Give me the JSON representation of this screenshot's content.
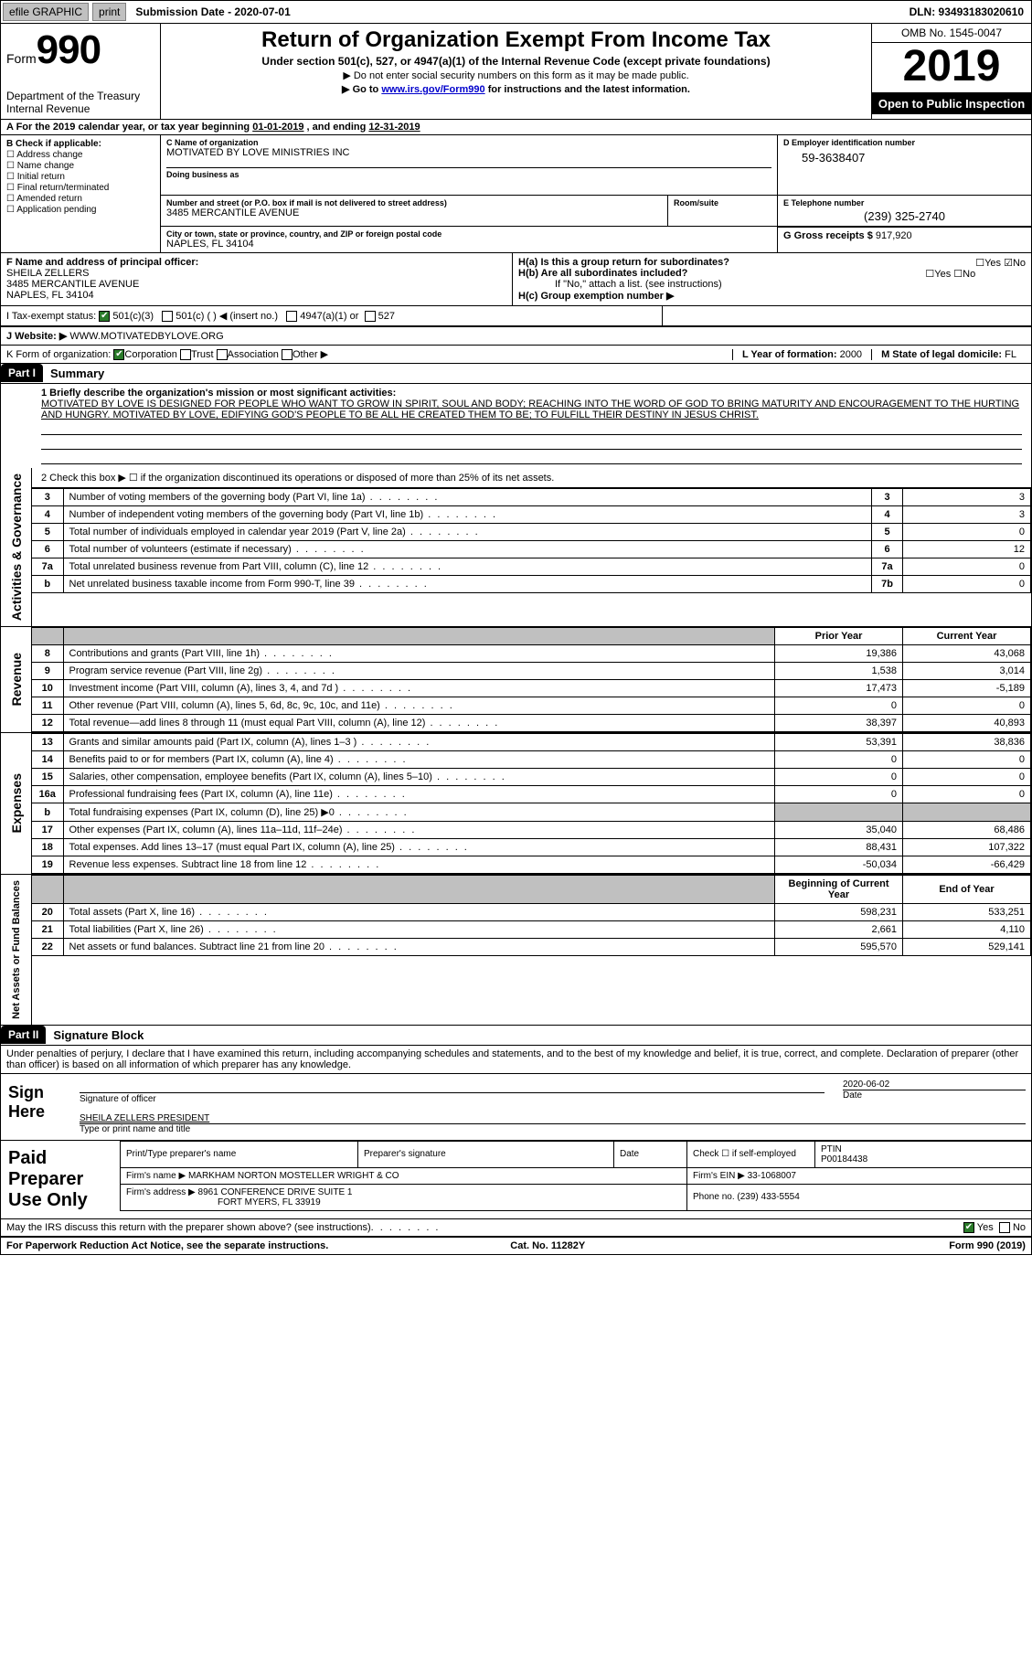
{
  "topbar": {
    "efile": "efile GRAPHIC",
    "print": "print",
    "submission": "Submission Date - 2020-07-01",
    "dln": "DLN: 93493183020610"
  },
  "header": {
    "form_prefix": "Form",
    "form_number": "990",
    "dept1": "Department of the Treasury",
    "dept2": "Internal Revenue",
    "title": "Return of Organization Exempt From Income Tax",
    "subtitle": "Under section 501(c), 527, or 4947(a)(1) of the Internal Revenue Code (except private foundations)",
    "note1": "▶ Do not enter social security numbers on this form as it may be made public.",
    "note2a": "▶ Go to ",
    "note2_link": "www.irs.gov/Form990",
    "note2b": " for instructions and the latest information.",
    "omb": "OMB No. 1545-0047",
    "year": "2019",
    "inspection": "Open to Public Inspection"
  },
  "period": {
    "prefix": "A   For the 2019 calendar year, or tax year beginning ",
    "begin": "01-01-2019",
    "mid": " , and ending ",
    "end": "12-31-2019"
  },
  "sectionB": {
    "header": "B Check if applicable:",
    "opts": [
      "Address change",
      "Name change",
      "Initial return",
      "Final return/terminated",
      "Amended return",
      "Application pending"
    ]
  },
  "sectionC": {
    "label_name": "C Name of organization",
    "name": "MOTIVATED BY LOVE MINISTRIES INC",
    "dba_label": "Doing business as",
    "street_label": "Number and street (or P.O. box if mail is not delivered to street address)",
    "room_label": "Room/suite",
    "street": "3485 MERCANTILE AVENUE",
    "city_label": "City or town, state or province, country, and ZIP or foreign postal code",
    "city": "NAPLES, FL  34104"
  },
  "sectionD": {
    "label": "D Employer identification number",
    "value": "59-3638407"
  },
  "sectionE": {
    "label": "E Telephone number",
    "value": "(239) 325-2740"
  },
  "sectionG": {
    "label": "G Gross receipts $",
    "value": "917,920"
  },
  "sectionF": {
    "label": "F  Name and address of principal officer:",
    "name": "SHEILA ZELLERS",
    "street": "3485 MERCANTILE AVENUE",
    "city": "NAPLES, FL  34104"
  },
  "sectionH": {
    "a_label": "H(a)  Is this a group return for subordinates?",
    "b_label": "H(b)  Are all subordinates included?",
    "b_note": "If \"No,\" attach a list. (see instructions)",
    "c_label": "H(c)  Group exemption number ▶",
    "yes": "Yes",
    "no": "No"
  },
  "rowI": {
    "label": "I    Tax-exempt status:",
    "opt1": "501(c)(3)",
    "opt2": "501(c) (  ) ◀ (insert no.)",
    "opt3": "4947(a)(1) or",
    "opt4": "527"
  },
  "rowJ": {
    "label": "J    Website: ▶",
    "value": "WWW.MOTIVATEDBYLOVE.ORG"
  },
  "rowK": {
    "label": "K Form of organization:",
    "opts": [
      "Corporation",
      "Trust",
      "Association",
      "Other ▶"
    ]
  },
  "rowL": {
    "label": "L Year of formation:",
    "value": "2000"
  },
  "rowM": {
    "label": "M State of legal domicile:",
    "value": "FL"
  },
  "parts": {
    "p1": "Part I",
    "p1_title": "Summary",
    "p2": "Part II",
    "p2_title": "Signature Block"
  },
  "summary": {
    "line1_label": "1   Briefly describe the organization's mission or most significant activities:",
    "mission": "MOTIVATED BY LOVE IS DESIGNED FOR PEOPLE WHO WANT TO GROW IN SPIRIT, SOUL AND BODY; REACHING INTO THE WORD OF GOD TO BRING MATURITY AND ENCOURAGEMENT TO THE HURTING AND HUNGRY. MOTIVATED BY LOVE, EDIFYING GOD'S PEOPLE TO BE ALL HE CREATED THEM TO BE; TO FULFILL THEIR DESTINY IN JESUS CHRIST.",
    "line2": "2   Check this box ▶ ☐  if the organization discontinued its operations or disposed of more than 25% of its net assets.",
    "rows_ag": [
      {
        "n": "3",
        "desc": "Number of voting members of the governing body (Part VI, line 1a)",
        "ln": "3",
        "v": "3"
      },
      {
        "n": "4",
        "desc": "Number of independent voting members of the governing body (Part VI, line 1b)",
        "ln": "4",
        "v": "3"
      },
      {
        "n": "5",
        "desc": "Total number of individuals employed in calendar year 2019 (Part V, line 2a)",
        "ln": "5",
        "v": "0"
      },
      {
        "n": "6",
        "desc": "Total number of volunteers (estimate if necessary)",
        "ln": "6",
        "v": "12"
      },
      {
        "n": "7a",
        "desc": "Total unrelated business revenue from Part VIII, column (C), line 12",
        "ln": "7a",
        "v": "0"
      },
      {
        "n": "b",
        "desc": "Net unrelated business taxable income from Form 990-T, line 39",
        "ln": "7b",
        "v": "0"
      }
    ],
    "col_prior": "Prior Year",
    "col_current": "Current Year",
    "rows_rev": [
      {
        "n": "8",
        "desc": "Contributions and grants (Part VIII, line 1h)",
        "p": "19,386",
        "c": "43,068"
      },
      {
        "n": "9",
        "desc": "Program service revenue (Part VIII, line 2g)",
        "p": "1,538",
        "c": "3,014"
      },
      {
        "n": "10",
        "desc": "Investment income (Part VIII, column (A), lines 3, 4, and 7d )",
        "p": "17,473",
        "c": "-5,189"
      },
      {
        "n": "11",
        "desc": "Other revenue (Part VIII, column (A), lines 5, 6d, 8c, 9c, 10c, and 11e)",
        "p": "0",
        "c": "0"
      },
      {
        "n": "12",
        "desc": "Total revenue—add lines 8 through 11 (must equal Part VIII, column (A), line 12)",
        "p": "38,397",
        "c": "40,893"
      }
    ],
    "rows_exp": [
      {
        "n": "13",
        "desc": "Grants and similar amounts paid (Part IX, column (A), lines 1–3 )",
        "p": "53,391",
        "c": "38,836"
      },
      {
        "n": "14",
        "desc": "Benefits paid to or for members (Part IX, column (A), line 4)",
        "p": "0",
        "c": "0"
      },
      {
        "n": "15",
        "desc": "Salaries, other compensation, employee benefits (Part IX, column (A), lines 5–10)",
        "p": "0",
        "c": "0"
      },
      {
        "n": "16a",
        "desc": "Professional fundraising fees (Part IX, column (A), line 11e)",
        "p": "0",
        "c": "0"
      },
      {
        "n": "b",
        "desc": "Total fundraising expenses (Part IX, column (D), line 25) ▶0",
        "p": "",
        "c": "",
        "shade": true
      },
      {
        "n": "17",
        "desc": "Other expenses (Part IX, column (A), lines 11a–11d, 11f–24e)",
        "p": "35,040",
        "c": "68,486"
      },
      {
        "n": "18",
        "desc": "Total expenses. Add lines 13–17 (must equal Part IX, column (A), line 25)",
        "p": "88,431",
        "c": "107,322"
      },
      {
        "n": "19",
        "desc": "Revenue less expenses. Subtract line 18 from line 12",
        "p": "-50,034",
        "c": "-66,429"
      }
    ],
    "col_begin": "Beginning of Current Year",
    "col_end": "End of Year",
    "rows_net": [
      {
        "n": "20",
        "desc": "Total assets (Part X, line 16)",
        "p": "598,231",
        "c": "533,251"
      },
      {
        "n": "21",
        "desc": "Total liabilities (Part X, line 26)",
        "p": "2,661",
        "c": "4,110"
      },
      {
        "n": "22",
        "desc": "Net assets or fund balances. Subtract line 21 from line 20",
        "p": "595,570",
        "c": "529,141"
      }
    ],
    "side_ag": "Activities & Governance",
    "side_rev": "Revenue",
    "side_exp": "Expenses",
    "side_net": "Net Assets or Fund Balances"
  },
  "sig": {
    "declaration": "Under penalties of perjury, I declare that I have examined this return, including accompanying schedules and statements, and to the best of my knowledge and belief, it is true, correct, and complete. Declaration of preparer (other than officer) is based on all information of which preparer has any knowledge.",
    "sign_here": "Sign Here",
    "sig_officer": "Signature of officer",
    "date": "Date",
    "date_val": "2020-06-02",
    "name_title": "SHEILA ZELLERS  PRESIDENT",
    "name_title_label": "Type or print name and title",
    "paid": "Paid Preparer Use Only",
    "h_print": "Print/Type preparer's name",
    "h_sig": "Preparer's signature",
    "h_date": "Date",
    "h_check": "Check ☐ if self-employed",
    "h_ptin": "PTIN",
    "ptin": "P00184438",
    "firm_name_label": "Firm's name    ▶",
    "firm_name": "MARKHAM NORTON MOSTELLER WRIGHT & CO",
    "firm_ein_label": "Firm's EIN ▶",
    "firm_ein": "33-1068007",
    "firm_addr_label": "Firm's address ▶",
    "firm_addr1": "8961 CONFERENCE DRIVE SUITE 1",
    "firm_addr2": "FORT MYERS, FL  33919",
    "phone_label": "Phone no.",
    "phone": "(239) 433-5554",
    "discuss": "May the IRS discuss this return with the preparer shown above? (see instructions)",
    "yes": "Yes",
    "no": "No"
  },
  "footer": {
    "left": "For Paperwork Reduction Act Notice, see the separate instructions.",
    "mid": "Cat. No. 11282Y",
    "right": "Form 990 (2019)"
  }
}
